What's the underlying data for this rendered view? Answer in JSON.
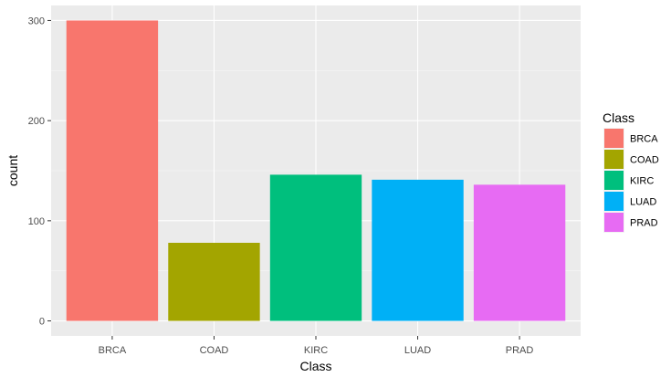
{
  "chart_data": {
    "type": "bar",
    "categories": [
      "BRCA",
      "COAD",
      "KIRC",
      "LUAD",
      "PRAD"
    ],
    "values": [
      300,
      78,
      146,
      141,
      136
    ],
    "colors": [
      "#F8766D",
      "#A3A500",
      "#00BF7D",
      "#00B0F6",
      "#E76BF3"
    ],
    "xlabel": "Class",
    "ylabel": "count",
    "ylim": [
      -15,
      315
    ],
    "yticks": [
      0,
      100,
      200,
      300
    ],
    "grid": true,
    "panel_background": "#EBEBEB",
    "legend": {
      "title": "Class",
      "position": "right",
      "entries": [
        "BRCA",
        "COAD",
        "KIRC",
        "LUAD",
        "PRAD"
      ]
    }
  }
}
